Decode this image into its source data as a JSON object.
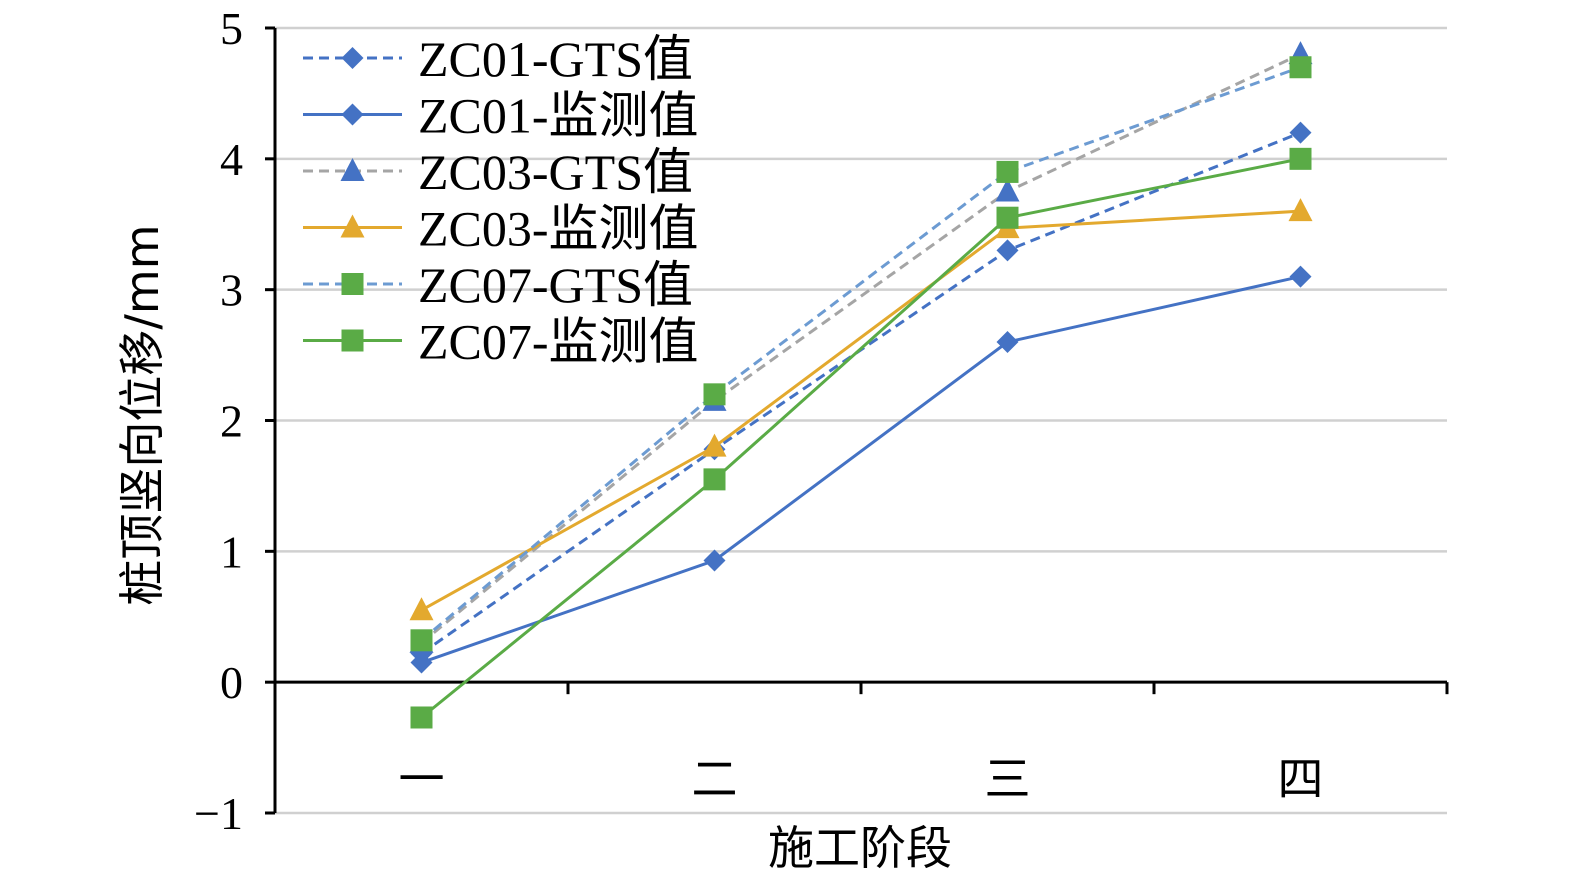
{
  "chart_data": {
    "type": "line",
    "categories": [
      "一",
      "二",
      "三",
      "四"
    ],
    "xlabel": "施工阶段",
    "ylabel": "桩顶竖向位移/mm",
    "ylim": [
      -1,
      5
    ],
    "yticks": [
      5,
      4,
      3,
      2,
      1,
      0,
      -1
    ],
    "ytick_labels": [
      "5",
      "4",
      "3",
      "2",
      "1",
      "0",
      "−1"
    ],
    "grid": true,
    "legend": "top-left",
    "series": [
      {
        "name": "ZC01-GTS值",
        "values": [
          0.22,
          1.78,
          3.3,
          4.2
        ],
        "color": "#4472c4",
        "dash": true,
        "marker": "diamond"
      },
      {
        "name": "ZC01-监测值",
        "values": [
          0.15,
          0.93,
          2.6,
          3.1
        ],
        "color": "#4472c4",
        "dash": false,
        "marker": "diamond"
      },
      {
        "name": "ZC03-GTS值",
        "values": [
          0.3,
          2.15,
          3.75,
          4.8
        ],
        "color": "#a5a5a5",
        "markerColor": "#4472c4",
        "dash": true,
        "marker": "triangle"
      },
      {
        "name": "ZC03-监测值",
        "values": [
          0.55,
          1.8,
          3.47,
          3.6
        ],
        "color": "#e3a92e",
        "dash": false,
        "marker": "triangle"
      },
      {
        "name": "ZC07-GTS值",
        "values": [
          0.32,
          2.2,
          3.9,
          4.7
        ],
        "color": "#6c9bd2",
        "markerColor": "#5aab46",
        "dash": true,
        "marker": "square"
      },
      {
        "name": "ZC07-监测值",
        "values": [
          -0.27,
          1.55,
          3.55,
          4.0
        ],
        "color": "#5aab46",
        "dash": false,
        "marker": "square"
      }
    ]
  }
}
